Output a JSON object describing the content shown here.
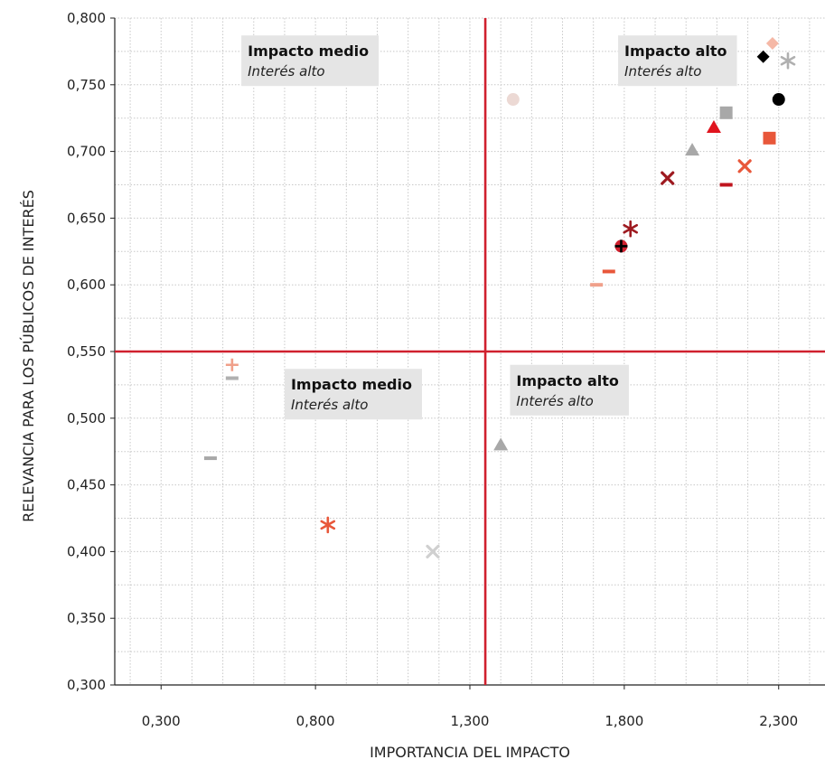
{
  "chart_data": {
    "type": "scatter",
    "xlabel": "IMPORTANCIA DEL IMPACTO",
    "ylabel": "RELEVANCIA PARA LOS PÚBLICOS DE INTERÉS",
    "xlim": [
      0.15,
      2.45
    ],
    "ylim": [
      0.3,
      0.8
    ],
    "x_ticks": [
      0.3,
      0.8,
      1.3,
      1.8,
      2.3
    ],
    "x_tick_labels": [
      "0,300",
      "0,800",
      "1,300",
      "1,800",
      "2,300"
    ],
    "y_ticks": [
      0.3,
      0.35,
      0.4,
      0.45,
      0.5,
      0.55,
      0.6,
      0.65,
      0.7,
      0.75,
      0.8
    ],
    "y_tick_labels": [
      "0,300",
      "0,350",
      "0,400",
      "0,450",
      "0,500",
      "0,550",
      "0,600",
      "0,650",
      "0,700",
      "0,750",
      "0,800"
    ],
    "grid": "dotted",
    "dividers": {
      "x": 1.35,
      "y": 0.55,
      "color": "#d0202e"
    },
    "quadrant_labels": [
      {
        "title": "Impacto medio",
        "subtitle": "Interés alto",
        "anchor": [
          0.56,
          0.787
        ]
      },
      {
        "title": "Impacto alto",
        "subtitle": "Interés alto",
        "anchor": [
          1.78,
          0.787
        ]
      },
      {
        "title": "Impacto medio",
        "subtitle": "Interés alto",
        "anchor": [
          0.7,
          0.537
        ]
      },
      {
        "title": "Impacto alto",
        "subtitle": "Interés alto",
        "anchor": [
          1.43,
          0.54
        ]
      }
    ],
    "points": [
      {
        "x": 2.28,
        "y": 0.781,
        "marker": "diamond",
        "color": "#f5b8a6"
      },
      {
        "x": 2.25,
        "y": 0.771,
        "marker": "diamond",
        "color": "#000000"
      },
      {
        "x": 2.33,
        "y": 0.768,
        "marker": "asterisk",
        "color": "#b0b0b0"
      },
      {
        "x": 2.3,
        "y": 0.739,
        "marker": "circle",
        "color": "#000000"
      },
      {
        "x": 1.44,
        "y": 0.739,
        "marker": "circle",
        "color": "#ecd9d4"
      },
      {
        "x": 2.13,
        "y": 0.729,
        "marker": "square",
        "color": "#a8a8a8"
      },
      {
        "x": 2.09,
        "y": 0.718,
        "marker": "triangle",
        "color": "#e0141e"
      },
      {
        "x": 2.27,
        "y": 0.71,
        "marker": "square",
        "color": "#e8573a"
      },
      {
        "x": 2.02,
        "y": 0.701,
        "marker": "triangle",
        "color": "#a8a8a8"
      },
      {
        "x": 2.19,
        "y": 0.689,
        "marker": "x",
        "color": "#e8573a"
      },
      {
        "x": 1.94,
        "y": 0.68,
        "marker": "x",
        "color": "#9e1a20"
      },
      {
        "x": 2.13,
        "y": 0.675,
        "marker": "dash",
        "color": "#c0141e"
      },
      {
        "x": 1.82,
        "y": 0.642,
        "marker": "asterisk",
        "color": "#9e1a20"
      },
      {
        "x": 1.79,
        "y": 0.629,
        "marker": "circle",
        "color": "#d0202e"
      },
      {
        "x": 1.79,
        "y": 0.629,
        "marker": "plus",
        "color": "#000000"
      },
      {
        "x": 1.75,
        "y": 0.61,
        "marker": "dash",
        "color": "#e8573a"
      },
      {
        "x": 1.71,
        "y": 0.6,
        "marker": "dash",
        "color": "#f0a08a"
      },
      {
        "x": 0.53,
        "y": 0.54,
        "marker": "plus",
        "color": "#f0a08a"
      },
      {
        "x": 0.53,
        "y": 0.53,
        "marker": "dash",
        "color": "#b0b0b0"
      },
      {
        "x": 0.46,
        "y": 0.47,
        "marker": "dash",
        "color": "#a8a8a8"
      },
      {
        "x": 1.4,
        "y": 0.48,
        "marker": "triangle",
        "color": "#a8a8a8"
      },
      {
        "x": 0.84,
        "y": 0.42,
        "marker": "asterisk",
        "color": "#e8573a"
      },
      {
        "x": 1.18,
        "y": 0.4,
        "marker": "x",
        "color": "#d0d0d0"
      }
    ]
  }
}
